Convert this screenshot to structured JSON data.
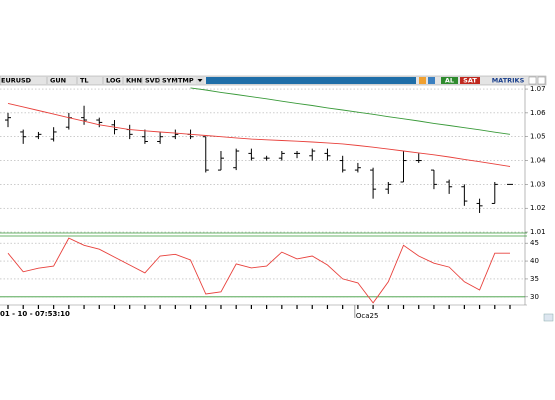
{
  "toolbar": {
    "symbol": "EURUSD",
    "buttons": [
      "GUN",
      "TL",
      "LOG",
      "KHN",
      "SVD",
      "SYM",
      "TMP"
    ],
    "buy": "AL",
    "sell": "SAT",
    "brand": "MATRIKS"
  },
  "time_label": "01 - 10 - 07:53:10",
  "chart_data": [
    {
      "type": "ohlc",
      "categories": [
        null,
        null,
        null,
        null,
        null,
        null,
        null,
        null,
        null,
        null,
        null,
        null,
        null,
        null,
        null,
        null,
        null,
        null,
        null,
        null,
        null,
        null,
        null,
        "Oca25",
        null,
        null,
        null,
        null,
        null,
        null,
        null,
        null,
        null,
        null
      ],
      "open": [
        1.057,
        1.052,
        1.05,
        1.049,
        1.054,
        1.058,
        1.057,
        1.055,
        1.053,
        1.05,
        1.048,
        1.05,
        1.051,
        1.05,
        1.036,
        1.037,
        1.043,
        1.041,
        1.041,
        1.043,
        1.042,
        1.043,
        1.04,
        1.036,
        1.036,
        1.028,
        1.031,
        1.04,
        1.036,
        1.031,
        1.029,
        1.022,
        1.022,
        1.03
      ],
      "high": [
        1.06,
        1.053,
        1.052,
        1.054,
        1.06,
        1.063,
        1.058,
        1.057,
        1.055,
        1.053,
        1.052,
        1.053,
        1.053,
        1.05,
        1.044,
        1.045,
        1.045,
        1.042,
        1.044,
        1.044,
        1.045,
        1.045,
        1.042,
        1.039,
        1.037,
        1.031,
        1.044,
        1.043,
        1.036,
        1.032,
        1.03,
        1.024,
        1.031,
        1.03
      ],
      "low": [
        1.054,
        1.047,
        1.049,
        1.048,
        1.053,
        1.055,
        1.054,
        1.051,
        1.049,
        1.047,
        1.047,
        1.049,
        1.049,
        1.035,
        1.036,
        1.036,
        1.04,
        1.04,
        1.04,
        1.041,
        1.04,
        1.04,
        1.035,
        1.035,
        1.024,
        1.026,
        1.031,
        1.039,
        1.028,
        1.026,
        1.021,
        1.018,
        1.022,
        1.03
      ],
      "close": [
        1.058,
        1.05,
        1.051,
        1.052,
        1.058,
        1.057,
        1.056,
        1.053,
        1.051,
        1.048,
        1.05,
        1.051,
        1.05,
        1.036,
        1.041,
        1.044,
        1.041,
        1.041,
        1.043,
        1.043,
        1.044,
        1.042,
        1.036,
        1.037,
        1.028,
        1.03,
        1.04,
        1.04,
        1.03,
        1.029,
        1.023,
        1.021,
        1.03,
        1.03
      ],
      "bar_color": "#000000",
      "series": [
        {
          "color": "#e8413c",
          "values": [
            1.064,
            1.0625,
            1.061,
            1.0595,
            1.058,
            1.0565,
            1.055,
            1.054,
            1.053,
            1.0525,
            1.052,
            1.0515,
            1.051,
            1.0505,
            1.05,
            1.0495,
            1.049,
            1.0487,
            1.0484,
            1.0481,
            1.0478,
            1.0474,
            1.047,
            1.0463,
            1.0456,
            1.0448,
            1.044,
            1.0432,
            1.0424,
            1.0415,
            1.0405,
            1.0395,
            1.0385,
            1.0375
          ]
        },
        {
          "color": "#3a9a3a",
          "values": [
            null,
            null,
            null,
            null,
            null,
            null,
            null,
            null,
            null,
            null,
            null,
            null,
            1.0705,
            1.0696,
            1.0686,
            1.0677,
            1.0668,
            1.0659,
            1.0649,
            1.064,
            1.0631,
            1.0621,
            1.0612,
            1.0603,
            1.0594,
            1.0584,
            1.0575,
            1.0566,
            1.0556,
            1.0547,
            1.0538,
            1.0529,
            1.0519,
            1.051
          ]
        }
      ],
      "ylim": [
        1.0096,
        1.0717
      ],
      "yticks": [
        1.01,
        1.02,
        1.03,
        1.04,
        1.05,
        1.06,
        1.07
      ],
      "grid": true
    },
    {
      "type": "line",
      "series": [
        {
          "color": "#e8413c",
          "values": [
            42.2,
            37,
            38,
            38.6,
            46.4,
            44.4,
            43.3,
            41.1,
            38.9,
            36.7,
            41.4,
            41.9,
            40.3,
            30.8,
            31.4,
            39.2,
            38.1,
            38.6,
            42.5,
            40.6,
            41.4,
            38.9,
            35,
            33.9,
            28.3,
            34.2,
            44.4,
            41.4,
            39.4,
            38.3,
            34.2,
            31.9,
            42.2,
            42.2
          ]
        }
      ],
      "reference_line": 30,
      "reference_color": "#3a9a3a",
      "ylim": [
        28,
        47
      ],
      "yticks": [
        30,
        35,
        40,
        45
      ],
      "grid": true
    }
  ]
}
